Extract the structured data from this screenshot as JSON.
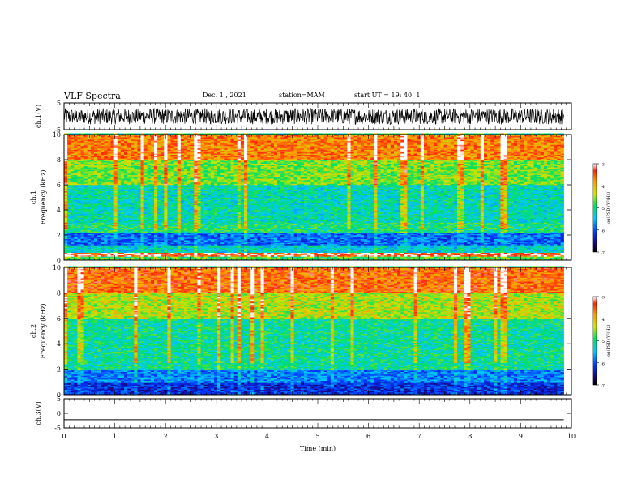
{
  "header": {
    "title": "VLF Spectra",
    "date": "Dec. 1 , 2021",
    "station": "station=MAM",
    "start": "start UT =  19: 40: 1"
  },
  "chart_data": [
    {
      "type": "line",
      "panel": "ch1-waveform",
      "ylabel": "ch.1(V)",
      "ylim": [
        -5,
        5
      ],
      "y_ticks": [
        "5",
        "-5"
      ],
      "xlim": [
        0,
        10
      ],
      "description_values": "dense black waveform spanning roughly -3 to +3 V, 0 to ~9.85 min",
      "x_end": 9.85,
      "amplitude": [
        -3,
        3
      ]
    },
    {
      "type": "heatmap",
      "panel": "ch1-spectrogram",
      "ylabel_line1": "ch.1",
      "ylabel_line2": "Frequency (kHz)",
      "ylim": [
        0,
        10
      ],
      "y_ticks": [
        "0",
        "2",
        "4",
        "6",
        "8",
        "10"
      ],
      "xlim": [
        0,
        10
      ],
      "x_end": 9.85,
      "colorbar": {
        "label": "log(PSD)(V²/Hz)",
        "range": [
          -7,
          -3
        ],
        "ticks": [
          "-3",
          "-4",
          "-5",
          "-6",
          "-7"
        ]
      },
      "bands_log_psd": [
        {
          "f": [
            0.0,
            0.3
          ],
          "v": -4.8
        },
        {
          "f": [
            0.3,
            0.6
          ],
          "v": -3.3
        },
        {
          "f": [
            0.6,
            1.2
          ],
          "v": -5.3
        },
        {
          "f": [
            1.2,
            2.2
          ],
          "v": -5.9
        },
        {
          "f": [
            2.2,
            3.0
          ],
          "v": -5.0
        },
        {
          "f": [
            3.0,
            6.0
          ],
          "v": -5.2
        },
        {
          "f": [
            6.0,
            8.0
          ],
          "v": -4.6
        },
        {
          "f": [
            8.0,
            10.0
          ],
          "v": -3.7
        }
      ]
    },
    {
      "type": "heatmap",
      "panel": "ch2-spectrogram",
      "ylabel_line1": "ch.2",
      "ylabel_line2": "Frequency (kHz)",
      "ylim": [
        0,
        10
      ],
      "y_ticks": [
        "0",
        "2",
        "4",
        "6",
        "8",
        "10"
      ],
      "xlim": [
        0,
        10
      ],
      "x_end": 9.85,
      "colorbar": {
        "label": "log(PSD)(V²/Hz)",
        "range": [
          -7,
          -3
        ],
        "ticks": [
          "-3",
          "-4",
          "-5",
          "-6",
          "-7"
        ]
      },
      "bands_log_psd": [
        {
          "f": [
            0.0,
            1.0
          ],
          "v": -6.2
        },
        {
          "f": [
            1.0,
            2.0
          ],
          "v": -5.8
        },
        {
          "f": [
            2.0,
            3.0
          ],
          "v": -5.1
        },
        {
          "f": [
            3.0,
            6.0
          ],
          "v": -5.1
        },
        {
          "f": [
            6.0,
            8.0
          ],
          "v": -4.4
        },
        {
          "f": [
            8.0,
            10.0
          ],
          "v": -3.6
        }
      ]
    },
    {
      "type": "line",
      "panel": "ch3-waveform",
      "ylabel": "ch.3(V)",
      "ylim": [
        -5,
        5
      ],
      "y_ticks": [
        "5",
        "0",
        "-5"
      ],
      "xlim": [
        0,
        10
      ],
      "xlabel": "Time (min)",
      "x_ticks": [
        "0",
        "1",
        "2",
        "3",
        "4",
        "5",
        "6",
        "7",
        "8",
        "9",
        "10"
      ],
      "x": [
        0,
        9.85
      ],
      "y": [
        -2.2,
        -2.2
      ]
    }
  ]
}
